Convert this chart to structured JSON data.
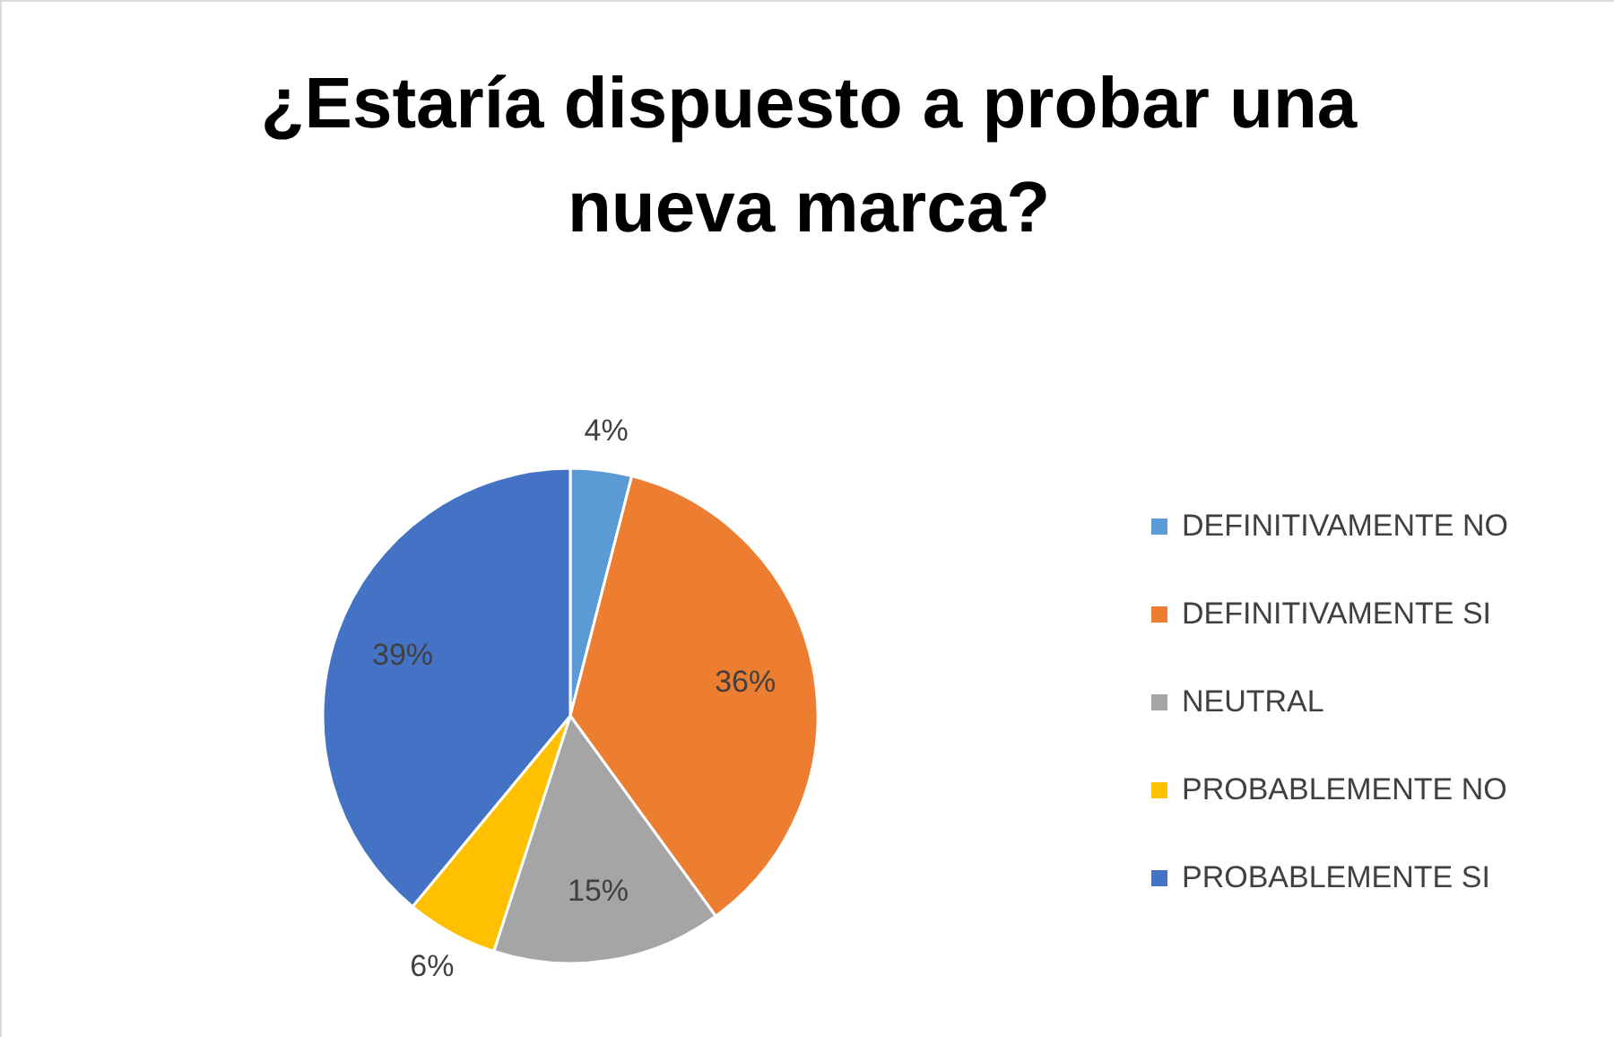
{
  "chart_data": {
    "type": "pie",
    "title": "¿Estaría dispuesto a probar una nueva marca?",
    "categories": [
      "DEFINITIVAMENTE NO",
      "DEFINITIVAMENTE SI",
      "NEUTRAL",
      "PROBABLEMENTE NO",
      "PROBABLEMENTE SI"
    ],
    "values": [
      4,
      36,
      15,
      6,
      39
    ],
    "colors": [
      "#5b9bd5",
      "#ed7d31",
      "#a5a5a5",
      "#ffc000",
      "#4472c4"
    ],
    "value_labels": [
      "4%",
      "36%",
      "15%",
      "6%",
      "39%"
    ],
    "legend": "right"
  }
}
